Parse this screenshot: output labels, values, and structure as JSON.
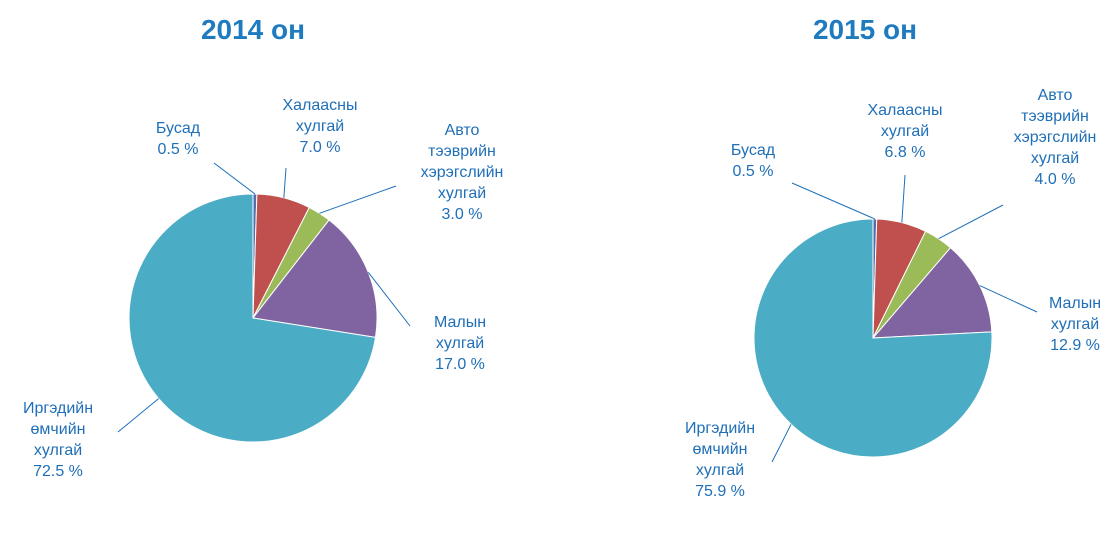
{
  "chart_data": [
    {
      "type": "pie",
      "title": "2014 он",
      "categories": [
        "Бусад",
        "Халаасны хулгай",
        "Авто тээврийн хэрэгслийн хулгай",
        "Малын хулгай",
        "Иргэдийн өмчийн хулгай"
      ],
      "values": [
        0.5,
        7.0,
        3.0,
        17.0,
        72.5
      ],
      "value_labels": [
        "0.5 %",
        "7.0 %",
        "3.0 %",
        "17.0 %",
        "72.5 %"
      ],
      "colors": [
        "#4f6fae",
        "#c0504d",
        "#9bbb59",
        "#8064a2",
        "#4bacc6"
      ]
    },
    {
      "type": "pie",
      "title": "2015 он",
      "categories": [
        "Бусад",
        "Халаасны хулгай",
        "Авто тээврийн хэрэгслийн хулгай",
        "Малын хулгай",
        "Иргэдийн өмчийн хулгай"
      ],
      "values": [
        0.5,
        6.8,
        4.0,
        12.9,
        75.9
      ],
      "value_labels": [
        "0.5 %",
        "6.8 %",
        "4.0 %",
        "12.9 %",
        "75.9 %"
      ],
      "colors": [
        "#4f6fae",
        "#c0504d",
        "#9bbb59",
        "#8064a2",
        "#4bacc6"
      ]
    }
  ]
}
